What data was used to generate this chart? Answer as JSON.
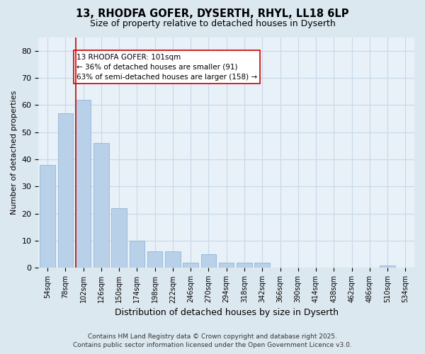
{
  "title": "13, RHODFA GOFER, DYSERTH, RHYL, LL18 6LP",
  "subtitle": "Size of property relative to detached houses in Dyserth",
  "xlabel": "Distribution of detached houses by size in Dyserth",
  "ylabel": "Number of detached properties",
  "categories": [
    "54sqm",
    "78sqm",
    "102sqm",
    "126sqm",
    "150sqm",
    "174sqm",
    "198sqm",
    "222sqm",
    "246sqm",
    "270sqm",
    "294sqm",
    "318sqm",
    "342sqm",
    "366sqm",
    "390sqm",
    "414sqm",
    "438sqm",
    "462sqm",
    "486sqm",
    "510sqm",
    "534sqm"
  ],
  "values": [
    38,
    57,
    62,
    46,
    22,
    10,
    6,
    6,
    2,
    5,
    2,
    2,
    2,
    0,
    0,
    0,
    0,
    0,
    0,
    1,
    0
  ],
  "bar_color": "#b8d0e8",
  "bar_edge_color": "#90b8d8",
  "vline_x_index": 2,
  "vline_color": "#cc0000",
  "annotation_line1": "13 RHODFA GOFER: 101sqm",
  "annotation_line2": "← 36% of detached houses are smaller (91)",
  "annotation_line3": "63% of semi-detached houses are larger (158) →",
  "annotation_box_color": "#ffffff",
  "annotation_box_edge": "#cc0000",
  "ylim": [
    0,
    85
  ],
  "yticks": [
    0,
    10,
    20,
    30,
    40,
    50,
    60,
    70,
    80
  ],
  "footer1": "Contains HM Land Registry data © Crown copyright and database right 2025.",
  "footer2": "Contains public sector information licensed under the Open Government Licence v3.0.",
  "bg_color": "#dce8f0",
  "plot_bg_color": "#e8f0f8",
  "grid_color": "#c8d8e8",
  "title_fontsize": 10.5,
  "subtitle_fontsize": 9,
  "tick_fontsize": 7,
  "ylabel_fontsize": 8,
  "xlabel_fontsize": 9,
  "annotation_fontsize": 7.5,
  "footer_fontsize": 6.5
}
